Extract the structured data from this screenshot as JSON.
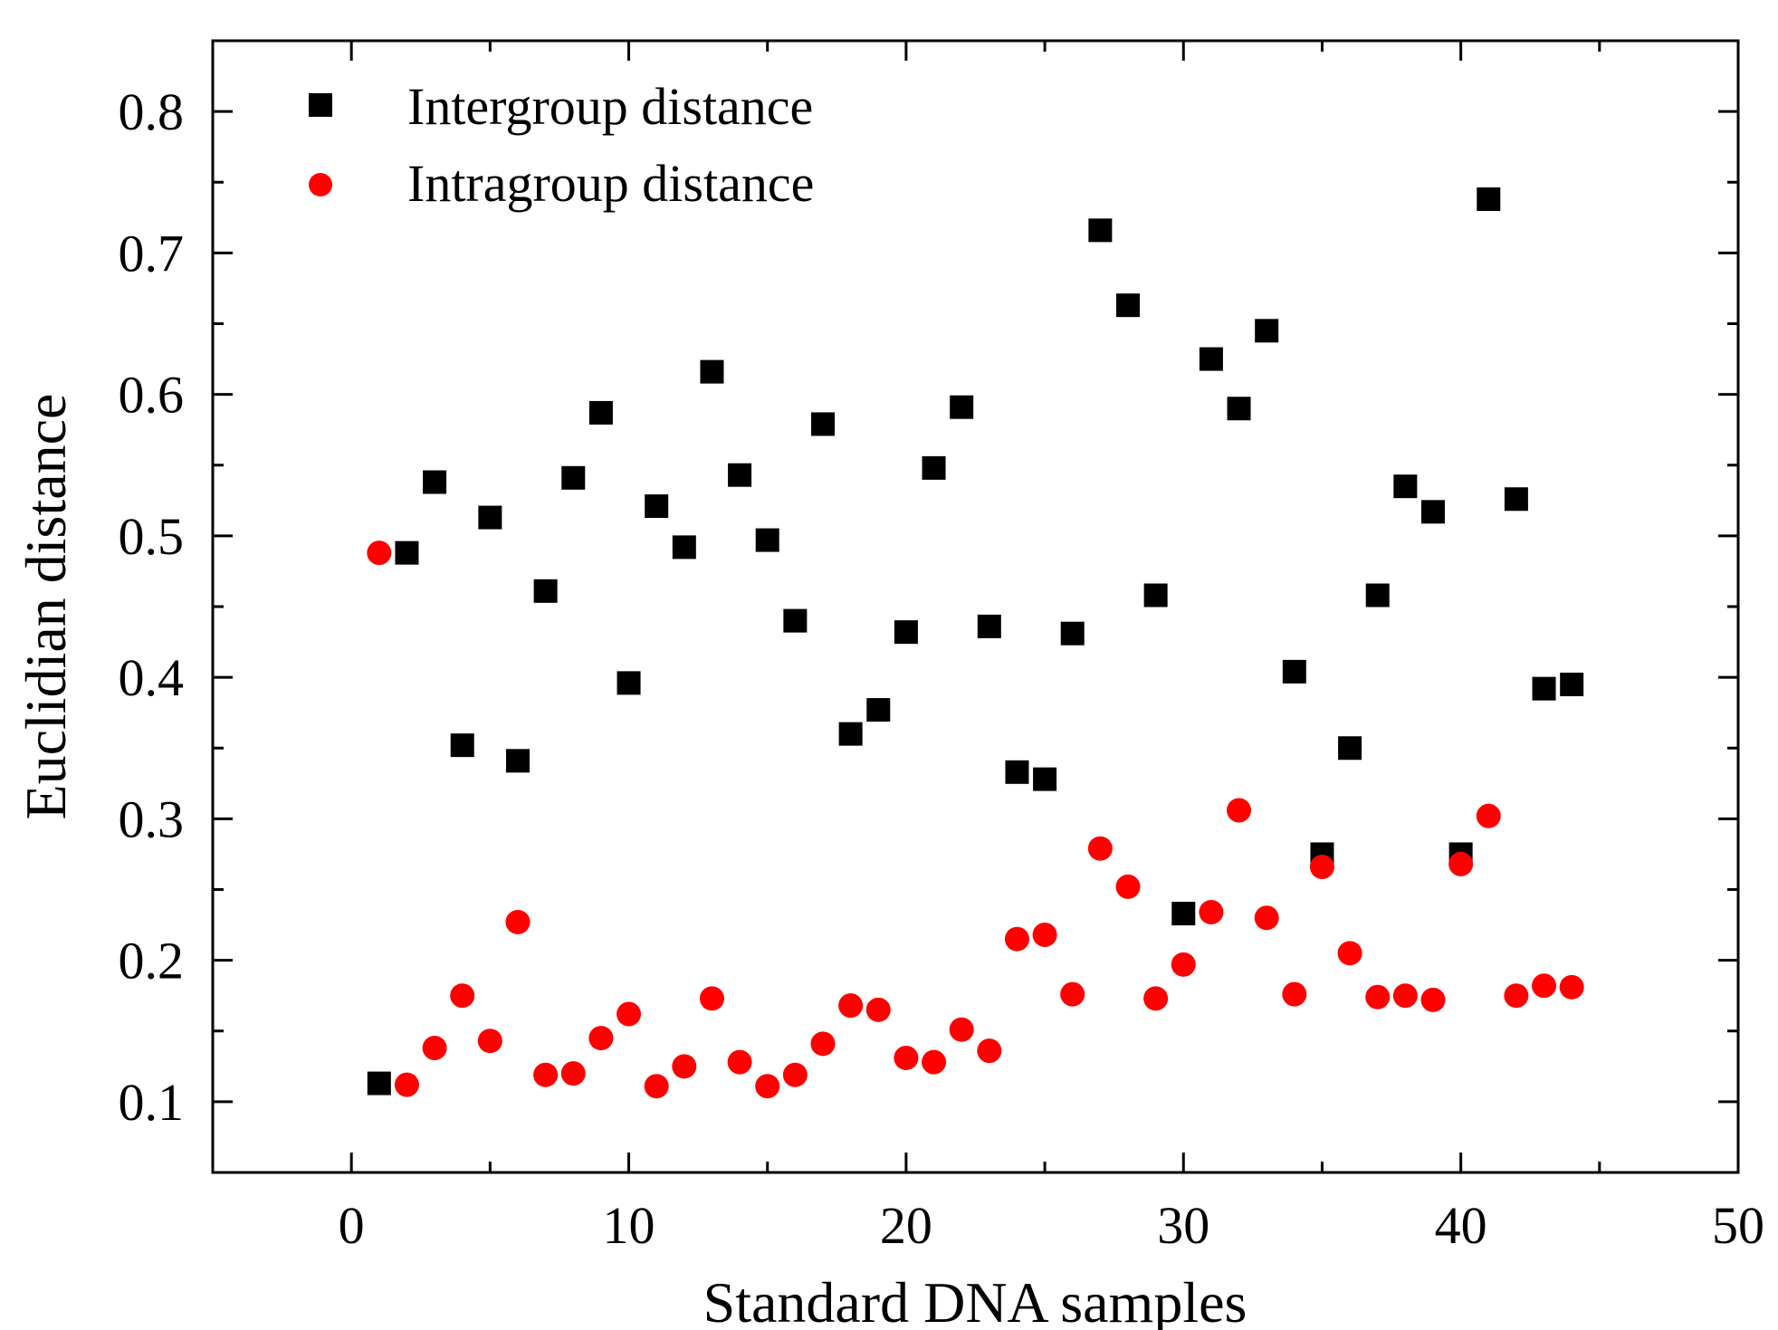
{
  "chart_data": {
    "type": "scatter",
    "title": "",
    "xlabel": "Standard DNA samples",
    "ylabel": "Euclidian distance",
    "xlim": [
      -5,
      50
    ],
    "ylim": [
      0.05,
      0.85
    ],
    "x_ticks": [
      0,
      10,
      20,
      30,
      40,
      50
    ],
    "x_tick_labels": [
      "0",
      "10",
      "20",
      "30",
      "40",
      "50"
    ],
    "y_ticks": [
      0.1,
      0.2,
      0.3,
      0.4,
      0.5,
      0.6,
      0.7,
      0.8
    ],
    "y_tick_labels": [
      "0.1",
      "0.2",
      "0.3",
      "0.4",
      "0.5",
      "0.6",
      "0.7",
      "0.8"
    ],
    "legend_position": "top-left",
    "series": [
      {
        "name": "Intergroup distance",
        "marker": "square",
        "color": "#000000",
        "x": [
          1,
          2,
          3,
          4,
          5,
          6,
          7,
          8,
          9,
          10,
          11,
          12,
          13,
          14,
          15,
          16,
          17,
          18,
          19,
          20,
          21,
          22,
          23,
          24,
          25,
          26,
          27,
          28,
          29,
          30,
          31,
          32,
          33,
          34,
          35,
          36,
          37,
          38,
          39,
          40,
          41,
          42,
          43,
          44
        ],
        "values": [
          0.113,
          0.488,
          0.538,
          0.352,
          0.513,
          0.341,
          0.461,
          0.541,
          0.587,
          0.396,
          0.521,
          0.492,
          0.616,
          0.543,
          0.497,
          0.44,
          0.579,
          0.36,
          0.377,
          0.432,
          0.548,
          0.591,
          0.436,
          0.333,
          0.328,
          0.431,
          0.716,
          0.663,
          0.458,
          0.233,
          0.625,
          0.59,
          0.645,
          0.404,
          0.275,
          0.35,
          0.458,
          0.535,
          0.517,
          0.275,
          0.738,
          0.526,
          0.392,
          0.395
        ]
      },
      {
        "name": "Intragroup distance",
        "marker": "circle",
        "color": "#ff0000",
        "x": [
          1,
          2,
          3,
          4,
          5,
          6,
          7,
          8,
          9,
          10,
          11,
          12,
          13,
          14,
          15,
          16,
          17,
          18,
          19,
          20,
          21,
          22,
          23,
          24,
          25,
          26,
          27,
          28,
          29,
          30,
          31,
          32,
          33,
          34,
          35,
          36,
          37,
          38,
          39,
          40,
          41,
          42,
          43,
          44
        ],
        "values": [
          0.488,
          0.112,
          0.138,
          0.175,
          0.143,
          0.227,
          0.119,
          0.12,
          0.145,
          0.162,
          0.111,
          0.125,
          0.173,
          0.128,
          0.111,
          0.119,
          0.141,
          0.168,
          0.165,
          0.131,
          0.128,
          0.151,
          0.136,
          0.215,
          0.218,
          0.176,
          0.279,
          0.252,
          0.173,
          0.197,
          0.234,
          0.306,
          0.23,
          0.176,
          0.266,
          0.205,
          0.174,
          0.175,
          0.172,
          0.268,
          0.302,
          0.175,
          0.182,
          0.181
        ]
      }
    ]
  }
}
